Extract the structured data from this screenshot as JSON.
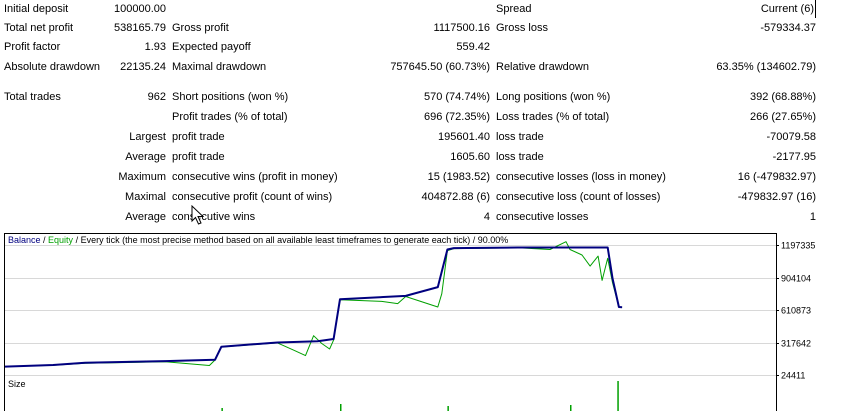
{
  "report": {
    "initial_deposit": {
      "label": "Initial deposit",
      "value": "100000.00"
    },
    "spread": {
      "label": "Spread",
      "value": "Current (6)"
    },
    "total_net_profit": {
      "label": "Total net profit",
      "value": "538165.79"
    },
    "gross_profit": {
      "label": "Gross profit",
      "value": "1117500.16"
    },
    "gross_loss": {
      "label": "Gross loss",
      "value": "-579334.37"
    },
    "profit_factor": {
      "label": "Profit factor",
      "value": "1.93"
    },
    "expected_payoff": {
      "label": "Expected payoff",
      "value": "559.42"
    },
    "absolute_drawdown": {
      "label": "Absolute drawdown",
      "value": "22135.24"
    },
    "maximal_drawdown": {
      "label": "Maximal drawdown",
      "value": "757645.50 (60.73%)"
    },
    "relative_drawdown": {
      "label": "Relative drawdown",
      "value": "63.35% (134602.79)"
    },
    "total_trades": {
      "label": "Total trades",
      "value": "962"
    },
    "short_positions": {
      "label": "Short positions (won %)",
      "value": "570 (74.74%)"
    },
    "long_positions": {
      "label": "Long positions (won %)",
      "value": "392 (68.88%)"
    },
    "profit_trades": {
      "label": "Profit trades (% of total)",
      "value": "696 (72.35%)"
    },
    "loss_trades": {
      "label": "Loss trades (% of total)",
      "value": "266 (27.65%)"
    },
    "largest": {
      "prefix": "Largest",
      "profit_label": "profit trade",
      "profit_value": "195601.40",
      "loss_label": "loss trade",
      "loss_value": "-70079.58"
    },
    "average": {
      "prefix": "Average",
      "profit_label": "profit trade",
      "profit_value": "1605.60",
      "loss_label": "loss trade",
      "loss_value": "-2177.95"
    },
    "maximum": {
      "prefix": "Maximum",
      "profit_label": "consecutive wins (profit in money)",
      "profit_value": "15 (1983.52)",
      "loss_label": "consecutive losses (loss in money)",
      "loss_value": "16 (-479832.97)"
    },
    "maximal": {
      "prefix": "Maximal",
      "profit_label": "consecutive profit (count of wins)",
      "profit_value": "404872.88 (6)",
      "loss_label": "consecutive loss (count of losses)",
      "loss_value": "-479832.97 (16)"
    },
    "average_consec": {
      "prefix": "Average",
      "profit_label": "consecutive wins",
      "profit_value": "4",
      "loss_label": "consecutive losses",
      "loss_value": "1"
    }
  },
  "chart": {
    "legend_balance": "Balance",
    "legend_sep": " / ",
    "legend_equity": "Equity",
    "legend_rest": " / Every tick (the most precise method based on all available least timeframes to generate each tick) / 90.00%",
    "size_label": "Size",
    "balance_color": "#00007f",
    "equity_color": "#00a000",
    "size_bar_color": "#00a000",
    "axis_ticks": [
      "1197335",
      "904104",
      "610873",
      "317642",
      "24411"
    ]
  },
  "chart_data": {
    "type": "line",
    "y_ticks": [
      1197335,
      904104,
      610873,
      317642,
      24411
    ],
    "ylim": [
      24411,
      1300000
    ],
    "xlim": [
      0,
      962
    ],
    "series": [
      {
        "name": "Balance",
        "color": "#00007f",
        "x": [
          0,
          60,
          100,
          200,
          262,
          270,
          340,
          390,
          410,
          418,
          500,
          540,
          552,
          560,
          640,
          752,
          758,
          766,
          770
        ],
        "y": [
          100000,
          115000,
          135000,
          150000,
          162000,
          280000,
          318000,
          330000,
          350000,
          710000,
          740000,
          820000,
          1160000,
          1172000,
          1178000,
          1178000,
          900000,
          640000,
          638000
        ]
      },
      {
        "name": "Equity",
        "color": "#00a000",
        "x": [
          0,
          60,
          100,
          200,
          255,
          262,
          270,
          340,
          360,
          375,
          385,
          395,
          405,
          410,
          418,
          470,
          490,
          500,
          540,
          545,
          552,
          560,
          640,
          680,
          700,
          705,
          720,
          730,
          740,
          745,
          752,
          758,
          766,
          770
        ],
        "y": [
          100000,
          112000,
          130000,
          145000,
          110000,
          160000,
          278000,
          315000,
          250000,
          200000,
          380000,
          310000,
          260000,
          340000,
          705000,
          690000,
          670000,
          735000,
          640000,
          760000,
          1150000,
          1168000,
          1175000,
          1160000,
          1230000,
          1160000,
          1110000,
          1010000,
          1100000,
          880000,
          1080000,
          860000,
          640000,
          636000
        ]
      }
    ]
  }
}
